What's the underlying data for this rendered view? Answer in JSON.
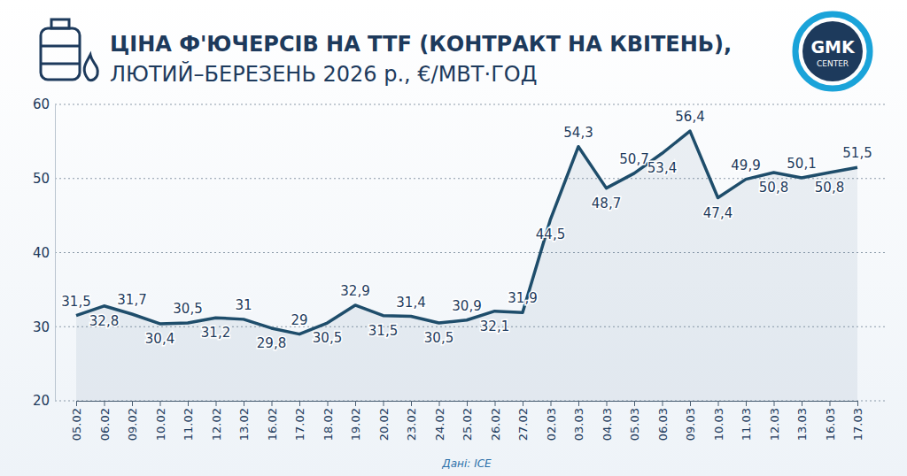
{
  "chart_data": {
    "type": "line",
    "title": "ЦІНА Ф'ЮЧЕРСІВ НА TTF (КОНТРАКТ НА КВІТЕНЬ),",
    "subtitle": "ЛЮТИЙ–БЕРЕЗЕНЬ 2026 р., €/МВТ·ГОД",
    "source": "Дані: ICE",
    "logo": [
      "GMK",
      "CENTER"
    ],
    "categories": [
      "05.02",
      "06.02",
      "09.02",
      "10.02",
      "11.02",
      "12.02",
      "13.02",
      "16.02",
      "17.02",
      "18.02",
      "19.02",
      "20.02",
      "23.02",
      "24.02",
      "25.02",
      "26.02",
      "27.02",
      "02.03",
      "03.03",
      "04.03",
      "05.03",
      "06.03",
      "09.03",
      "10.03",
      "11.03",
      "12.03",
      "13.03",
      "16.03",
      "17.03"
    ],
    "values": [
      31.5,
      32.8,
      31.7,
      30.4,
      30.5,
      31.2,
      31,
      29.8,
      29,
      30.5,
      32.9,
      31.5,
      31.4,
      30.5,
      30.9,
      32.1,
      31.9,
      44.5,
      54.3,
      48.7,
      50.7,
      53.4,
      56.4,
      47.4,
      49.9,
      50.8,
      50.1,
      50.8,
      51.5
    ],
    "value_labels": [
      "31,5",
      "32,8",
      "31,7",
      "30,4",
      "30,5",
      "31,2",
      "31",
      "29,8",
      "29",
      "30,5",
      "32,9",
      "31,5",
      "31,4",
      "30,5",
      "30,9",
      "32,1",
      "31,9",
      "44,5",
      "54,3",
      "48,7",
      "50,7",
      "53,4",
      "56,4",
      "47,4",
      "49,9",
      "50,8",
      "50,1",
      "50,8",
      "51,5"
    ],
    "color": "#1e4d6b",
    "ylim": [
      20,
      60
    ],
    "yticks": [
      20,
      30,
      40,
      50,
      60
    ],
    "grid": true,
    "data_labels": true
  }
}
